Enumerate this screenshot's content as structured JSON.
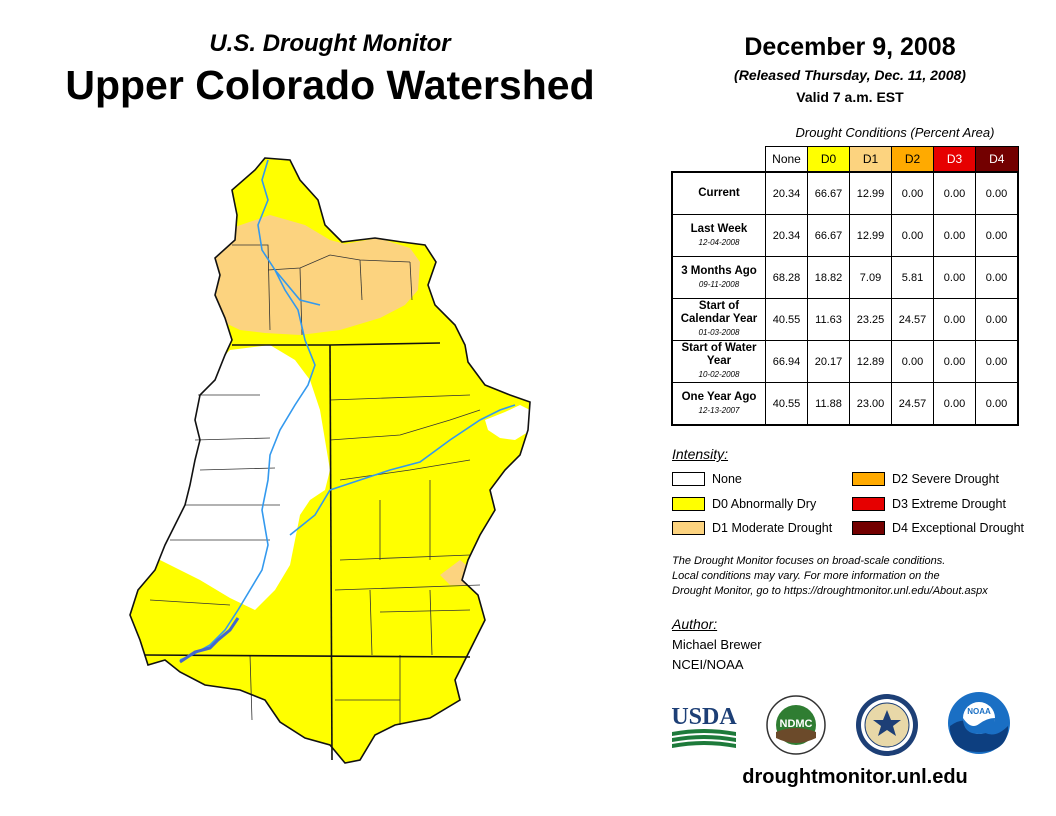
{
  "header": {
    "subtitle": "U.S. Drought Monitor",
    "title": "Upper Colorado Watershed",
    "date": "December 9, 2008",
    "released": "(Released Thursday, Dec. 11, 2008)",
    "valid": "Valid 7 a.m. EST"
  },
  "table": {
    "caption": "Drought Conditions (Percent Area)",
    "columns": [
      {
        "label": "None",
        "color": "#ffffff",
        "text_color": "#000000"
      },
      {
        "label": "D0",
        "color": "#ffff00",
        "text_color": "#000000"
      },
      {
        "label": "D1",
        "color": "#fcd37f",
        "text_color": "#000000"
      },
      {
        "label": "D2",
        "color": "#ffaa00",
        "text_color": "#000000"
      },
      {
        "label": "D3",
        "color": "#e60000",
        "text_color": "#ffffff"
      },
      {
        "label": "D4",
        "color": "#730000",
        "text_color": "#ffffff"
      }
    ],
    "rows": [
      {
        "label": "Current",
        "date": "",
        "values": [
          "20.34",
          "66.67",
          "12.99",
          "0.00",
          "0.00",
          "0.00"
        ]
      },
      {
        "label": "Last Week",
        "date": "12-04-2008",
        "values": [
          "20.34",
          "66.67",
          "12.99",
          "0.00",
          "0.00",
          "0.00"
        ]
      },
      {
        "label": "3 Months Ago",
        "date": "09-11-2008",
        "values": [
          "68.28",
          "18.82",
          "7.09",
          "5.81",
          "0.00",
          "0.00"
        ]
      },
      {
        "label": "Start of Calendar Year",
        "date": "01-03-2008",
        "values": [
          "40.55",
          "11.63",
          "23.25",
          "24.57",
          "0.00",
          "0.00"
        ]
      },
      {
        "label": "Start of Water Year",
        "date": "10-02-2008",
        "values": [
          "66.94",
          "20.17",
          "12.89",
          "0.00",
          "0.00",
          "0.00"
        ]
      },
      {
        "label": "One Year Ago",
        "date": "12-13-2007",
        "values": [
          "40.55",
          "11.88",
          "23.00",
          "24.57",
          "0.00",
          "0.00"
        ]
      }
    ]
  },
  "legend": {
    "title": "Intensity:",
    "items": [
      {
        "label": "None",
        "color": "#ffffff"
      },
      {
        "label": "D0 Abnormally Dry",
        "color": "#ffff00"
      },
      {
        "label": "D1 Moderate Drought",
        "color": "#fcd37f"
      },
      {
        "label": "D2 Severe Drought",
        "color": "#ffaa00"
      },
      {
        "label": "D3 Extreme Drought",
        "color": "#e60000"
      },
      {
        "label": "D4 Exceptional Drought",
        "color": "#730000"
      }
    ]
  },
  "disclaimer": {
    "line1": "The Drought Monitor focuses on broad-scale conditions.",
    "line2": "Local conditions may vary. For more information on the",
    "line3": "Drought Monitor, go to https://droughtmonitor.unl.edu/About.aspx"
  },
  "author": {
    "title": "Author:",
    "name": "Michael Brewer",
    "org": "NCEI/NOAA"
  },
  "logos": {
    "usda": "USDA",
    "ndmc": "NDMC",
    "noaa": "NOAA"
  },
  "website": "droughtmonitor.unl.edu",
  "colors": {
    "none": "#ffffff",
    "d0": "#ffff00",
    "d1": "#fcd37f",
    "river": "#3399ee",
    "lake": "#4466cc"
  }
}
